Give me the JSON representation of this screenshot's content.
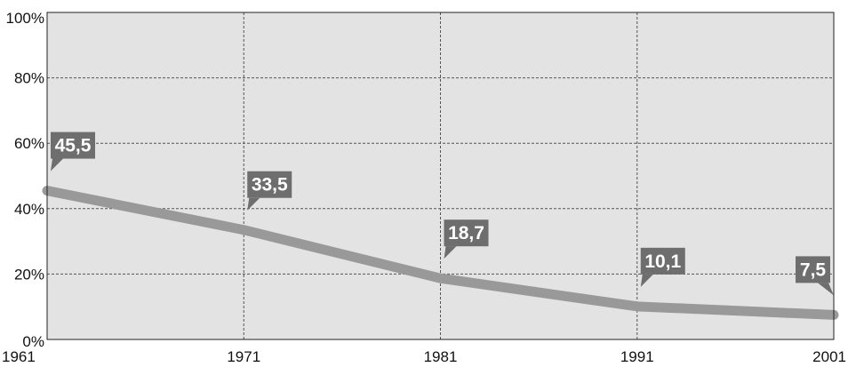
{
  "chart_data": {
    "type": "line",
    "x": [
      1961,
      1971,
      1981,
      1991,
      2001
    ],
    "series": [
      {
        "values": [
          45.5,
          33.5,
          18.7,
          10.1,
          7.5
        ],
        "labels": [
          "45,5",
          "33,5",
          "18,7",
          "10,1",
          "7,5"
        ]
      }
    ],
    "xticks": [
      "1961",
      "1971",
      "1981",
      "1991",
      "2001"
    ],
    "yticks": [
      "0%",
      "20%",
      "40%",
      "60%",
      "80%",
      "100%"
    ],
    "ylim": [
      0,
      100
    ],
    "xlim": [
      1961,
      2001
    ],
    "grid": true,
    "title": "",
    "xlabel": "",
    "ylabel": ""
  },
  "colors": {
    "plot_background": "#e3e3e3",
    "line": "#999999",
    "callout": "#6e6e6e",
    "grid": "#555555",
    "frame": "#222222"
  }
}
